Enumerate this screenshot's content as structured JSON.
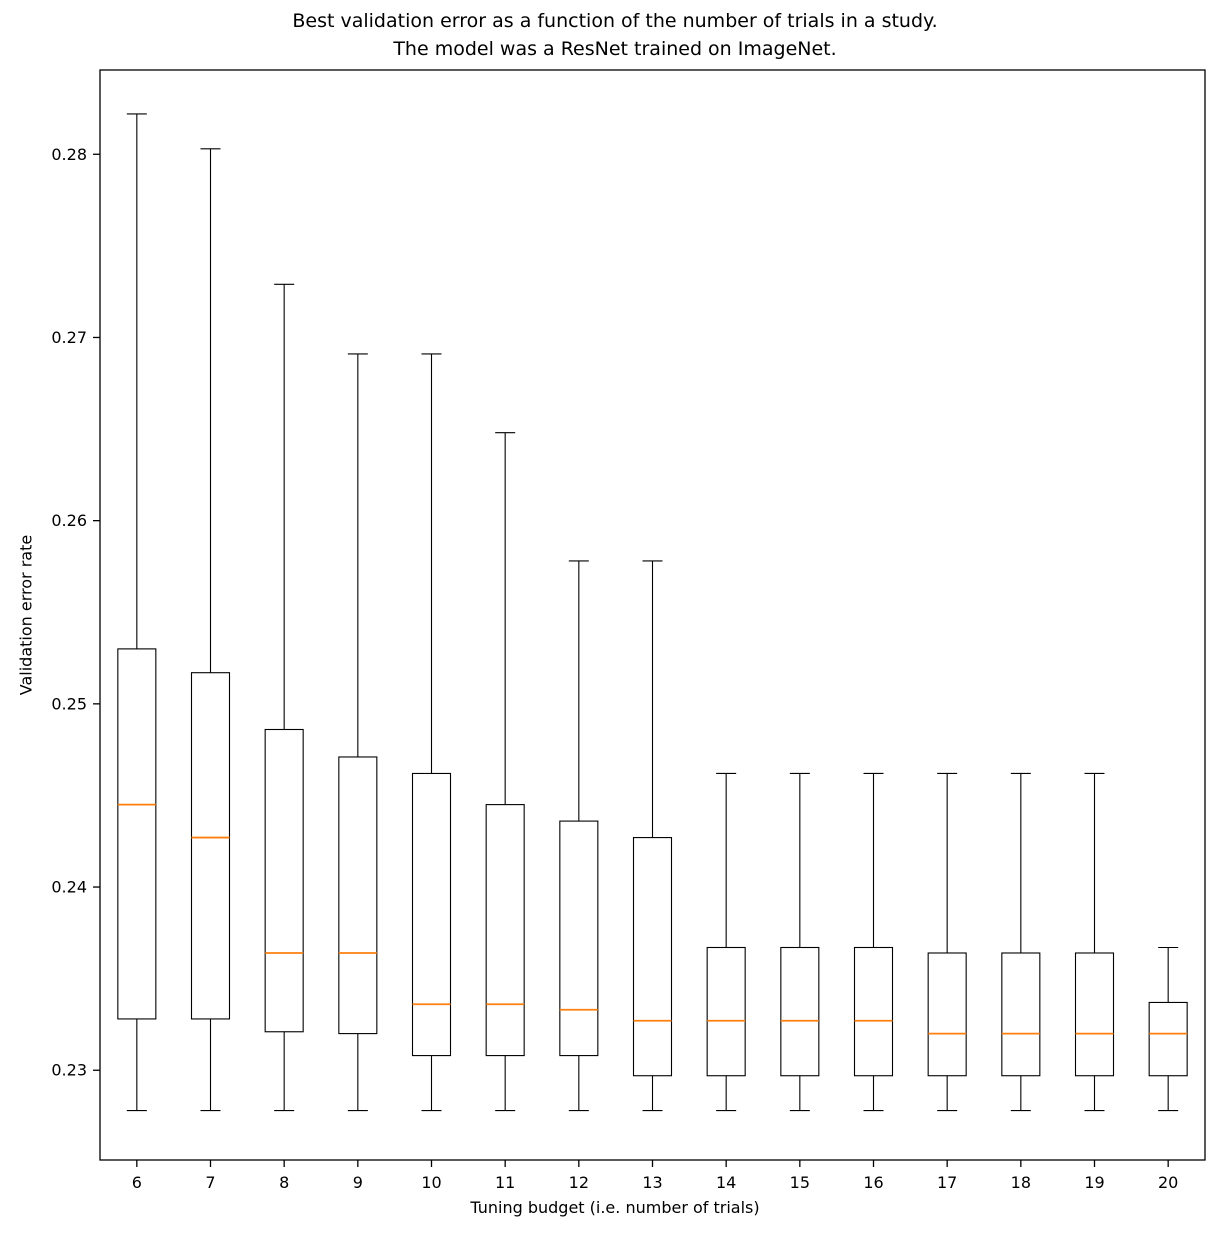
{
  "title": "Best validation error as a function of the number of trials in a study.\nThe model was a ResNet trained on ImageNet.",
  "chart_data": {
    "type": "boxplot",
    "title": "Best validation error as a function of the number of trials in a study. The model was a ResNet trained on ImageNet.",
    "xlabel": "Tuning budget (i.e. number of trials)",
    "ylabel": "Validation error rate",
    "categories": [
      "6",
      "7",
      "8",
      "9",
      "10",
      "11",
      "12",
      "13",
      "14",
      "15",
      "16",
      "17",
      "18",
      "19",
      "20"
    ],
    "yticks": [
      0.23,
      0.24,
      0.25,
      0.26,
      0.27,
      0.28
    ],
    "ylim": [
      0.2251,
      0.2846
    ],
    "grid": false,
    "legend": "none",
    "box_color": "#000000",
    "median_color": "#ff7f0e",
    "boxes": [
      {
        "label": "6",
        "whisker_low": 0.2278,
        "q1": 0.2328,
        "median": 0.2445,
        "q3": 0.253,
        "whisker_high": 0.2822
      },
      {
        "label": "7",
        "whisker_low": 0.2278,
        "q1": 0.2328,
        "median": 0.2427,
        "q3": 0.2517,
        "whisker_high": 0.2803
      },
      {
        "label": "8",
        "whisker_low": 0.2278,
        "q1": 0.2321,
        "median": 0.2364,
        "q3": 0.2486,
        "whisker_high": 0.2729
      },
      {
        "label": "9",
        "whisker_low": 0.2278,
        "q1": 0.232,
        "median": 0.2364,
        "q3": 0.2471,
        "whisker_high": 0.2691
      },
      {
        "label": "10",
        "whisker_low": 0.2278,
        "q1": 0.2308,
        "median": 0.2336,
        "q3": 0.2462,
        "whisker_high": 0.2691
      },
      {
        "label": "11",
        "whisker_low": 0.2278,
        "q1": 0.2308,
        "median": 0.2336,
        "q3": 0.2445,
        "whisker_high": 0.2648
      },
      {
        "label": "12",
        "whisker_low": 0.2278,
        "q1": 0.2308,
        "median": 0.2333,
        "q3": 0.2436,
        "whisker_high": 0.2578
      },
      {
        "label": "13",
        "whisker_low": 0.2278,
        "q1": 0.2297,
        "median": 0.2327,
        "q3": 0.2427,
        "whisker_high": 0.2578
      },
      {
        "label": "14",
        "whisker_low": 0.2278,
        "q1": 0.2297,
        "median": 0.2327,
        "q3": 0.2367,
        "whisker_high": 0.2462
      },
      {
        "label": "15",
        "whisker_low": 0.2278,
        "q1": 0.2297,
        "median": 0.2327,
        "q3": 0.2367,
        "whisker_high": 0.2462
      },
      {
        "label": "16",
        "whisker_low": 0.2278,
        "q1": 0.2297,
        "median": 0.2327,
        "q3": 0.2367,
        "whisker_high": 0.2462
      },
      {
        "label": "17",
        "whisker_low": 0.2278,
        "q1": 0.2297,
        "median": 0.232,
        "q3": 0.2364,
        "whisker_high": 0.2462
      },
      {
        "label": "18",
        "whisker_low": 0.2278,
        "q1": 0.2297,
        "median": 0.232,
        "q3": 0.2364,
        "whisker_high": 0.2462
      },
      {
        "label": "19",
        "whisker_low": 0.2278,
        "q1": 0.2297,
        "median": 0.232,
        "q3": 0.2364,
        "whisker_high": 0.2462
      },
      {
        "label": "20",
        "whisker_low": 0.2278,
        "q1": 0.2297,
        "median": 0.232,
        "q3": 0.2337,
        "whisker_high": 0.2367
      }
    ]
  }
}
